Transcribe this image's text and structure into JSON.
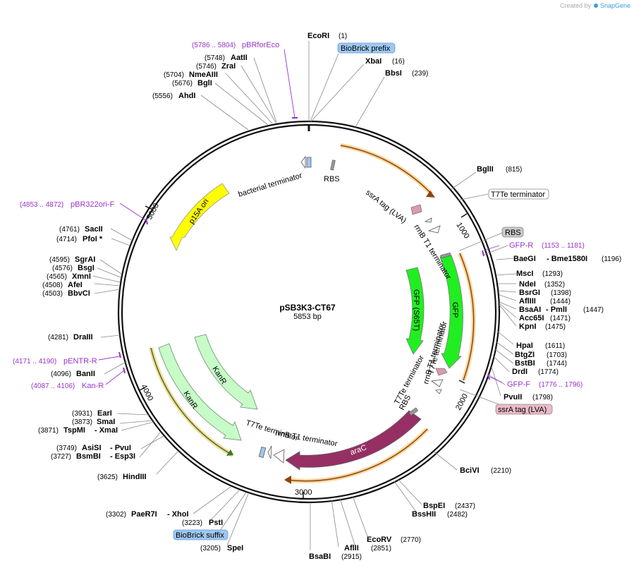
{
  "credit": {
    "prefix": "Created by",
    "brand": "SnapGene",
    "brand_color": "#3a9de0"
  },
  "plasmid": {
    "name": "pSB3K3-CT67",
    "length_label": "5853 bp",
    "length": 5853
  },
  "ticks": [
    {
      "label": "1000",
      "pos": 1000
    },
    {
      "label": "2000",
      "pos": 2000
    },
    {
      "label": "3000",
      "pos": 3000
    },
    {
      "label": "4000",
      "pos": 4000
    },
    {
      "label": "5000",
      "pos": 5000
    }
  ],
  "sites": [
    {
      "name": "EcoRI",
      "pos": "(1)"
    },
    {
      "name": "XbaI",
      "pos": "(16)"
    },
    {
      "name": "BbsI",
      "pos": "(239)"
    },
    {
      "name": "BglII",
      "pos": "(815)"
    },
    {
      "name": "BaeGI",
      "extra": "- Bme1580I",
      "pos": "(1196)"
    },
    {
      "name": "MscI",
      "pos": "(1293)"
    },
    {
      "name": "NdeI",
      "pos": "(1352)"
    },
    {
      "name": "BsrGI",
      "pos": "(1398)"
    },
    {
      "name": "AflIII",
      "pos": "(1444)"
    },
    {
      "name": "BsaAI",
      "extra": "- PmlI",
      "pos": "(1447)"
    },
    {
      "name": "Acc65I",
      "pos": "(1471)"
    },
    {
      "name": "KpnI",
      "pos": "(1475)"
    },
    {
      "name": "HpaI",
      "pos": "(1611)"
    },
    {
      "name": "BtgZI",
      "pos": "(1703)"
    },
    {
      "name": "BstBI",
      "pos": "(1744)"
    },
    {
      "name": "DrdI",
      "pos": "(1774)"
    },
    {
      "name": "PvuII",
      "pos": "(1798)"
    },
    {
      "name": "BciVI",
      "pos": "(2210)"
    },
    {
      "name": "BspEI",
      "pos": "(2437)"
    },
    {
      "name": "BssHII",
      "pos": "(2482)"
    },
    {
      "name": "EcoRV",
      "pos": "(2770)"
    },
    {
      "name": "AflII",
      "pos": "(2851)"
    },
    {
      "name": "BsaBI",
      "pos": "(2915)"
    },
    {
      "name": "SpeI",
      "pos": "(3205)"
    },
    {
      "name": "PstI",
      "pos": "(3223)"
    },
    {
      "name": "PaeR7I",
      "extra": "- XhoI",
      "pos": "(3302)"
    },
    {
      "name": "HindIII",
      "pos": "(3625)"
    },
    {
      "name": "BsmBI",
      "extra": "- Esp3I",
      "pos": "(3727)"
    },
    {
      "name": "AsiSI",
      "extra": "- PvuI",
      "pos": "(3749)"
    },
    {
      "name": "TspMI",
      "extra": "- XmaI",
      "pos": "(3871)"
    },
    {
      "name": "SmaI",
      "pos": "(3873)"
    },
    {
      "name": "EarI",
      "pos": "(3931)"
    },
    {
      "name": "BanII",
      "pos": "(4096)"
    },
    {
      "name": "DraIII",
      "pos": "(4281)"
    },
    {
      "name": "BbvCI",
      "pos": "(4503)"
    },
    {
      "name": "AfeI",
      "pos": "(4508)"
    },
    {
      "name": "XmnI",
      "pos": "(4565)"
    },
    {
      "name": "BsgI",
      "pos": "(4576)"
    },
    {
      "name": "SgrAI",
      "pos": "(4595)"
    },
    {
      "name": "PfoI *",
      "pos": "(4714)"
    },
    {
      "name": "SacII",
      "pos": "(4761)"
    },
    {
      "name": "AhdI",
      "pos": "(5556)"
    },
    {
      "name": "BglI",
      "pos": "(5676)"
    },
    {
      "name": "NmeAIII",
      "pos": "(5704)"
    },
    {
      "name": "ZraI",
      "pos": "(5746)"
    },
    {
      "name": "AatII",
      "pos": "(5748)"
    }
  ],
  "primers": [
    {
      "name": "pBRforEco",
      "range": "(5786 .. 5804)"
    },
    {
      "name": "GFP-R",
      "range": "(1153 .. 1181)"
    },
    {
      "name": "GFP-F",
      "range": "(1776 .. 1796)"
    },
    {
      "name": "pBR322ori-F",
      "range": "(4853 .. 4872)"
    },
    {
      "name": "pENTR-R",
      "range": "(4171 .. 4190)"
    },
    {
      "name": "Kan-R",
      "range": "(4087 .. 4106)"
    }
  ],
  "primer_color": "#9933cc",
  "boxed_labels": [
    {
      "text": "BioBrick prefix",
      "bg": "#9fc7f0",
      "border": "#6a9fd8"
    },
    {
      "text": "T7Te terminator",
      "bg": "#ffffff",
      "border": "#888888"
    },
    {
      "text": "RBS",
      "bg": "#c8c8c8",
      "border": "#888888"
    },
    {
      "text": "ssrA tag (LVA)",
      "bg": "#e8bcc8",
      "border": "#b07a8a"
    },
    {
      "text": "BioBrick suffix",
      "bg": "#9fc7f0",
      "border": "#6a9fd8"
    }
  ],
  "features": [
    {
      "name": "p15A ori",
      "color": "#ffff00"
    },
    {
      "name": "araC",
      "color": "#962f63"
    },
    {
      "name": "GFP",
      "color": "#21ee21"
    },
    {
      "name": "GFP (S65T)",
      "color": "#21ee21"
    },
    {
      "name": "KanR",
      "color": "#c7fbc7"
    },
    {
      "name": "KanR",
      "color": "#c7fbc7"
    }
  ],
  "inner_labels": [
    "bacterial terminator",
    "RBS",
    "ssrA tag (LVA)",
    "rrnB T1 terminator",
    "T7Te terminator",
    "rrnB T1 terminator",
    "T7Te terminator",
    "RBS",
    "T7Te terminator",
    "rrnB T1 terminator"
  ],
  "colors": {
    "backbone": "#111111",
    "orf_line": "#f5a623",
    "orf_arrow": "#8b4513"
  }
}
